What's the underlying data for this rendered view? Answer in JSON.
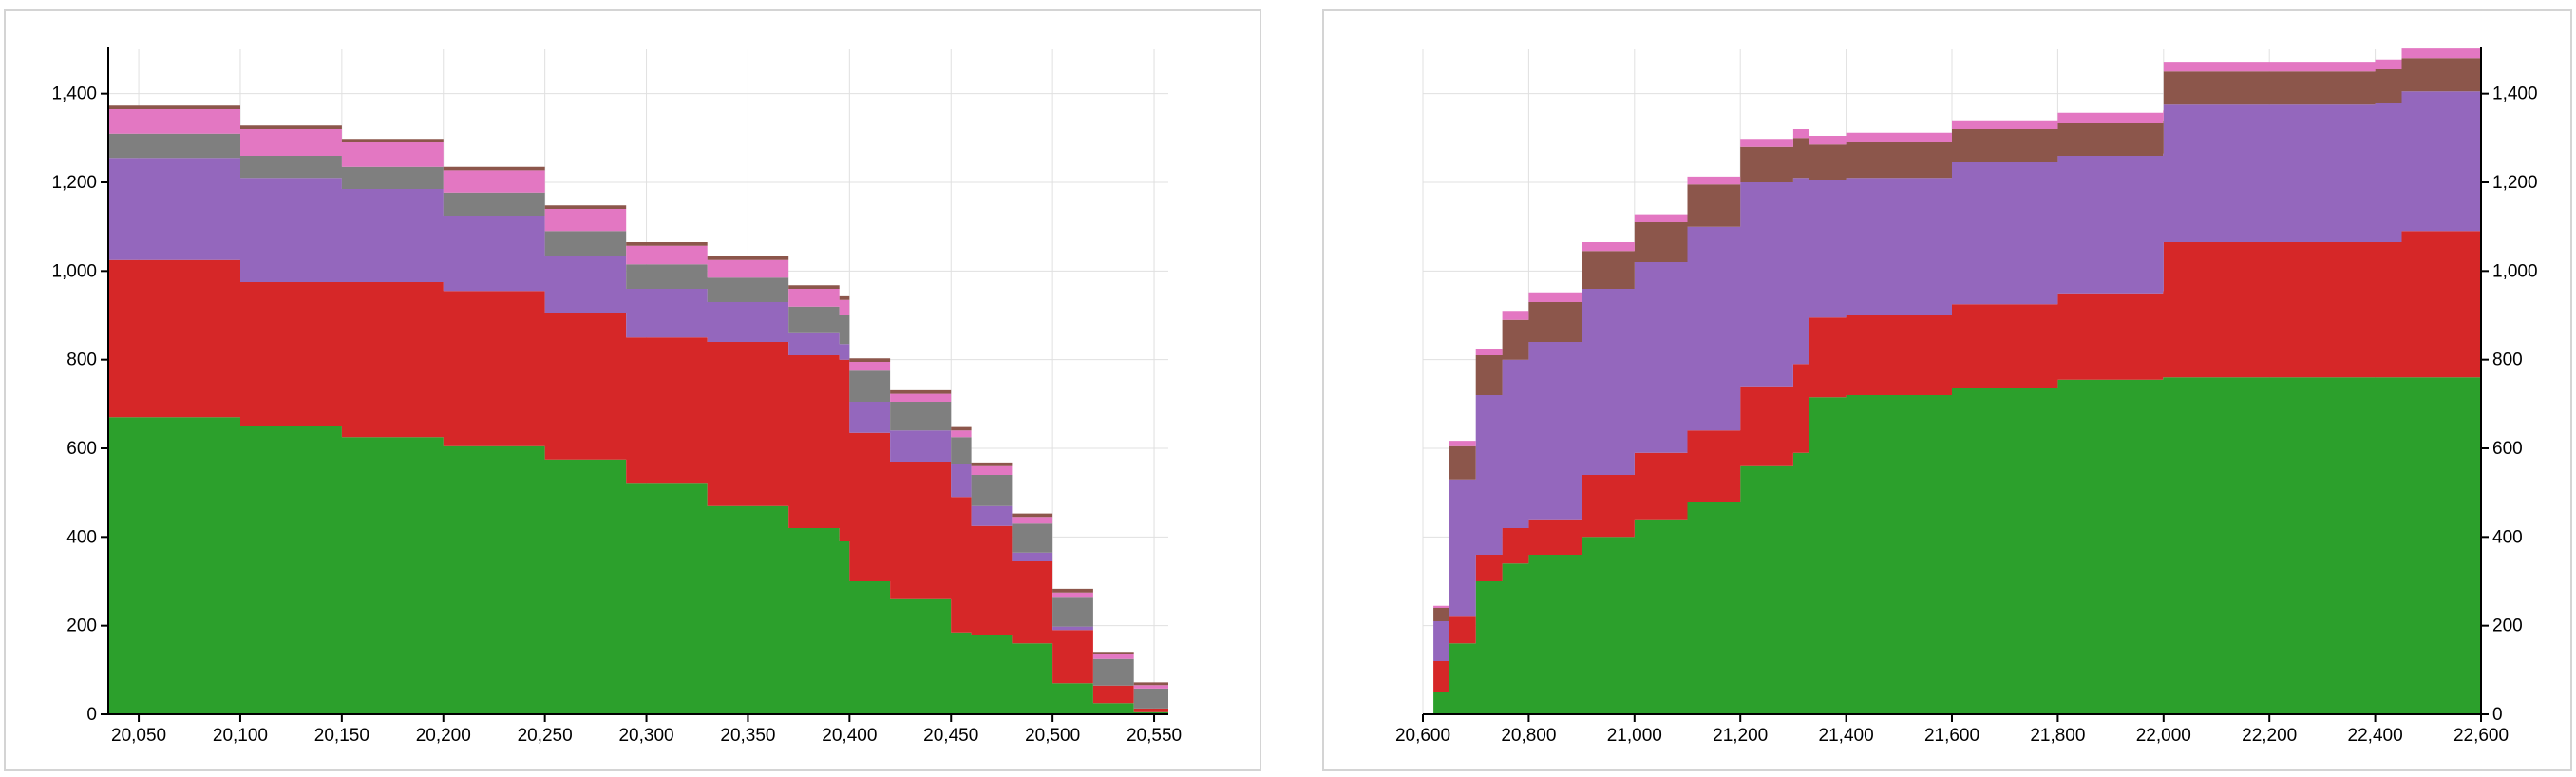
{
  "chart_data": [
    {
      "type": "area",
      "stacked": true,
      "step": true,
      "x_direction": "decreasing-cumulative",
      "xlim": [
        20035,
        20557
      ],
      "ylim": [
        0,
        1500
      ],
      "x_ticks": [
        "20,050",
        "20,100",
        "20,150",
        "20,200",
        "20,250",
        "20,300",
        "20,350",
        "20,400",
        "20,450",
        "20,500",
        "20,550"
      ],
      "y_ticks": [
        "0",
        "200",
        "400",
        "600",
        "800",
        "1,000",
        "1,200",
        "1,400"
      ],
      "y_axis_side": "left",
      "grid": true,
      "x": [
        20035,
        20100,
        20150,
        20200,
        20250,
        20290,
        20330,
        20370,
        20395,
        20400,
        20420,
        20450,
        20460,
        20480,
        20500,
        20520,
        20540,
        20557
      ],
      "series": [
        {
          "color": "#2ca02c",
          "values": [
            670,
            650,
            625,
            605,
            575,
            520,
            470,
            420,
            390,
            300,
            260,
            185,
            180,
            160,
            70,
            25,
            5,
            0
          ]
        },
        {
          "color": "#d62728",
          "values": [
            355,
            325,
            350,
            350,
            330,
            330,
            370,
            390,
            410,
            335,
            310,
            305,
            245,
            185,
            120,
            40,
            8,
            0
          ]
        },
        {
          "color": "#9467bd",
          "values": [
            230,
            235,
            210,
            170,
            130,
            110,
            90,
            50,
            35,
            70,
            70,
            75,
            45,
            20,
            8,
            0,
            0,
            0
          ]
        },
        {
          "color": "#7f7f7f",
          "values": [
            55,
            50,
            50,
            52,
            55,
            55,
            55,
            60,
            65,
            70,
            65,
            60,
            70,
            65,
            65,
            60,
            45,
            50
          ]
        },
        {
          "color": "#e377c2",
          "values": [
            55,
            60,
            55,
            50,
            50,
            42,
            40,
            40,
            35,
            20,
            18,
            15,
            20,
            15,
            12,
            10,
            8,
            8
          ]
        },
        {
          "color": "#8c564b",
          "values": [
            8,
            8,
            8,
            8,
            8,
            8,
            8,
            8,
            8,
            8,
            8,
            8,
            8,
            8,
            8,
            6,
            6,
            6
          ]
        }
      ]
    },
    {
      "type": "area",
      "stacked": true,
      "step": true,
      "x_direction": "increasing-cumulative",
      "xlim": [
        20600,
        22600
      ],
      "ylim": [
        0,
        1500
      ],
      "x_ticks": [
        "20,600",
        "20,800",
        "21,000",
        "21,200",
        "21,400",
        "21,600",
        "21,800",
        "22,000",
        "22,200",
        "22,400",
        "22,600"
      ],
      "y_ticks": [
        "0",
        "200",
        "400",
        "600",
        "800",
        "1,000",
        "1,200",
        "1,400"
      ],
      "y_axis_side": "right",
      "grid": true,
      "x": [
        20600,
        20620,
        20650,
        20700,
        20750,
        20800,
        20900,
        21000,
        21100,
        21200,
        21300,
        21330,
        21400,
        21600,
        21800,
        21999,
        22000,
        22200,
        22400,
        22450,
        22600
      ],
      "series": [
        {
          "color": "#2ca02c",
          "values": [
            0,
            50,
            160,
            300,
            340,
            360,
            400,
            440,
            480,
            560,
            590,
            715,
            720,
            735,
            755,
            760,
            760,
            760,
            760,
            760,
            760
          ]
        },
        {
          "color": "#d62728",
          "values": [
            0,
            70,
            60,
            60,
            80,
            80,
            140,
            150,
            160,
            180,
            200,
            180,
            180,
            190,
            195,
            195,
            305,
            305,
            305,
            330,
            330
          ]
        },
        {
          "color": "#9467bd",
          "values": [
            0,
            90,
            310,
            360,
            380,
            400,
            420,
            430,
            460,
            460,
            420,
            310,
            310,
            320,
            310,
            310,
            310,
            310,
            315,
            315,
            315
          ]
        },
        {
          "color": "#8c564b",
          "values": [
            0,
            30,
            75,
            90,
            90,
            90,
            85,
            90,
            95,
            80,
            90,
            80,
            80,
            75,
            75,
            75,
            75,
            75,
            75,
            75,
            75
          ]
        },
        {
          "color": "#e377c2",
          "values": [
            0,
            5,
            12,
            15,
            20,
            22,
            20,
            18,
            18,
            18,
            20,
            20,
            22,
            20,
            22,
            22,
            22,
            22,
            22,
            22,
            22
          ]
        }
      ]
    }
  ]
}
